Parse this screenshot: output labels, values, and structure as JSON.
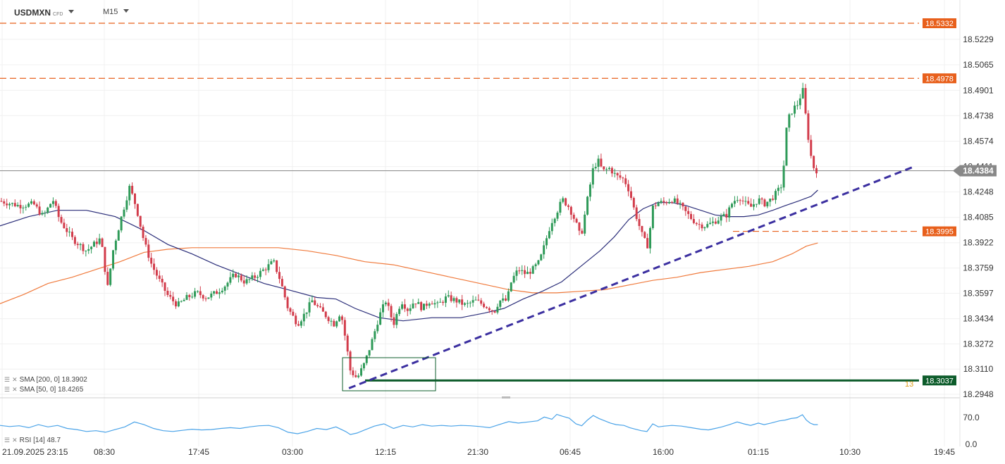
{
  "header": {
    "symbol": "USDMXN",
    "symbol_type": "CFD",
    "timeframe": "M15"
  },
  "indicators": {
    "sma200": {
      "label": "SMA [200, 0]",
      "value": "18.3902",
      "color": "#f07a3c"
    },
    "sma50": {
      "label": "SMA [50, 0]",
      "value": "18.4265",
      "color": "#2c2f7a"
    },
    "rsi": {
      "label": "RSI [14]",
      "value": "48.7",
      "color": "#4aa3e8"
    }
  },
  "chart_data": {
    "type": "candlestick",
    "price_ticks": [
      "18.5229",
      "18.5065",
      "18.4901",
      "18.4738",
      "18.4574",
      "18.4411",
      "18.4248",
      "18.4085",
      "18.3922",
      "18.3759",
      "18.3597",
      "18.3434",
      "18.3272",
      "18.3110",
      "18.2948"
    ],
    "time_ticks": [
      "21.09.2025 23:15",
      "08:30",
      "17:45",
      "03:00",
      "12:15",
      "21:30",
      "06:45",
      "16:00",
      "01:15",
      "10:30",
      "19:45"
    ],
    "y_range": [
      18.2948,
      18.5393
    ],
    "rsi_ticks": [
      "70.0",
      "0.0"
    ],
    "current_price": "18.4384",
    "levels": [
      {
        "name": "resistance-1",
        "value": "18.5332",
        "color": "#e8601c",
        "style": "dashed"
      },
      {
        "name": "resistance-2",
        "value": "18.4978",
        "color": "#e8601c",
        "style": "dashed"
      },
      {
        "name": "support-short",
        "value": "18.3995",
        "color": "#e8601c",
        "style": "dashed"
      },
      {
        "name": "low-level",
        "value": "18.3037",
        "color": "#0d5c2b",
        "style": "solid"
      }
    ],
    "low_level_marker": "13",
    "trendline": {
      "from": {
        "t": 0.3635,
        "p": 18.2987
      },
      "to": {
        "t": 0.9515,
        "p": 18.4409
      },
      "color": "#3b2fa0"
    },
    "price_path": [
      [
        0.0,
        18.419
      ],
      [
        0.02,
        18.416
      ],
      [
        0.035,
        18.417
      ],
      [
        0.045,
        18.409
      ],
      [
        0.055,
        18.42
      ],
      [
        0.062,
        18.407
      ],
      [
        0.075,
        18.395
      ],
      [
        0.09,
        18.387
      ],
      [
        0.105,
        18.395
      ],
      [
        0.112,
        18.363
      ],
      [
        0.118,
        18.388
      ],
      [
        0.127,
        18.41
      ],
      [
        0.135,
        18.428
      ],
      [
        0.142,
        18.415
      ],
      [
        0.15,
        18.393
      ],
      [
        0.158,
        18.378
      ],
      [
        0.166,
        18.368
      ],
      [
        0.175,
        18.358
      ],
      [
        0.185,
        18.352
      ],
      [
        0.195,
        18.357
      ],
      [
        0.205,
        18.36
      ],
      [
        0.215,
        18.357
      ],
      [
        0.225,
        18.36
      ],
      [
        0.235,
        18.365
      ],
      [
        0.245,
        18.372
      ],
      [
        0.255,
        18.367
      ],
      [
        0.265,
        18.37
      ],
      [
        0.275,
        18.375
      ],
      [
        0.285,
        18.38
      ],
      [
        0.292,
        18.368
      ],
      [
        0.3,
        18.35
      ],
      [
        0.31,
        18.34
      ],
      [
        0.318,
        18.347
      ],
      [
        0.325,
        18.355
      ],
      [
        0.332,
        18.35
      ],
      [
        0.34,
        18.345
      ],
      [
        0.348,
        18.34
      ],
      [
        0.355,
        18.348
      ],
      [
        0.36,
        18.33
      ],
      [
        0.365,
        18.31
      ],
      [
        0.372,
        18.305
      ],
      [
        0.38,
        18.315
      ],
      [
        0.388,
        18.33
      ],
      [
        0.395,
        18.345
      ],
      [
        0.402,
        18.355
      ],
      [
        0.41,
        18.34
      ],
      [
        0.418,
        18.355
      ],
      [
        0.425,
        18.349
      ],
      [
        0.432,
        18.355
      ],
      [
        0.44,
        18.35
      ],
      [
        0.448,
        18.355
      ],
      [
        0.456,
        18.352
      ],
      [
        0.465,
        18.357
      ],
      [
        0.475,
        18.355
      ],
      [
        0.485,
        18.352
      ],
      [
        0.495,
        18.355
      ],
      [
        0.505,
        18.352
      ],
      [
        0.515,
        18.348
      ],
      [
        0.52,
        18.355
      ],
      [
        0.528,
        18.355
      ],
      [
        0.533,
        18.368
      ],
      [
        0.54,
        18.375
      ],
      [
        0.548,
        18.372
      ],
      [
        0.555,
        18.375
      ],
      [
        0.562,
        18.38
      ],
      [
        0.567,
        18.39
      ],
      [
        0.574,
        18.405
      ],
      [
        0.58,
        18.412
      ],
      [
        0.586,
        18.42
      ],
      [
        0.593,
        18.415
      ],
      [
        0.6,
        18.405
      ],
      [
        0.605,
        18.395
      ],
      [
        0.612,
        18.42
      ],
      [
        0.618,
        18.44
      ],
      [
        0.623,
        18.445
      ],
      [
        0.628,
        18.438
      ],
      [
        0.635,
        18.44
      ],
      [
        0.642,
        18.435
      ],
      [
        0.65,
        18.433
      ],
      [
        0.656,
        18.425
      ],
      [
        0.66,
        18.415
      ],
      [
        0.665,
        18.405
      ],
      [
        0.67,
        18.395
      ],
      [
        0.675,
        18.39
      ],
      [
        0.68,
        18.415
      ],
      [
        0.686,
        18.418
      ],
      [
        0.692,
        18.418
      ],
      [
        0.7,
        18.42
      ],
      [
        0.707,
        18.417
      ],
      [
        0.714,
        18.412
      ],
      [
        0.72,
        18.408
      ],
      [
        0.727,
        18.404
      ],
      [
        0.735,
        18.403
      ],
      [
        0.742,
        18.405
      ],
      [
        0.75,
        18.408
      ],
      [
        0.757,
        18.41
      ],
      [
        0.763,
        18.418
      ],
      [
        0.77,
        18.422
      ],
      [
        0.775,
        18.418
      ],
      [
        0.782,
        18.415
      ],
      [
        0.79,
        18.42
      ],
      [
        0.796,
        18.417
      ],
      [
        0.803,
        18.42
      ],
      [
        0.81,
        18.425
      ],
      [
        0.815,
        18.43
      ],
      [
        0.82,
        18.47
      ],
      [
        0.826,
        18.478
      ],
      [
        0.832,
        18.482
      ],
      [
        0.836,
        18.492
      ],
      [
        0.84,
        18.47
      ],
      [
        0.844,
        18.45
      ],
      [
        0.848,
        18.44
      ],
      [
        0.852,
        18.438
      ]
    ],
    "sma50_path": [
      [
        0.0,
        18.403
      ],
      [
        0.03,
        18.409
      ],
      [
        0.06,
        18.413
      ],
      [
        0.09,
        18.413
      ],
      [
        0.12,
        18.409
      ],
      [
        0.15,
        18.4
      ],
      [
        0.175,
        18.391
      ],
      [
        0.2,
        18.385
      ],
      [
        0.225,
        18.378
      ],
      [
        0.25,
        18.372
      ],
      [
        0.275,
        18.366
      ],
      [
        0.3,
        18.362
      ],
      [
        0.33,
        18.357
      ],
      [
        0.35,
        18.356
      ],
      [
        0.37,
        18.35
      ],
      [
        0.395,
        18.344
      ],
      [
        0.42,
        18.342
      ],
      [
        0.45,
        18.344
      ],
      [
        0.48,
        18.344
      ],
      [
        0.505,
        18.347
      ],
      [
        0.525,
        18.35
      ],
      [
        0.545,
        18.356
      ],
      [
        0.565,
        18.361
      ],
      [
        0.585,
        18.367
      ],
      [
        0.605,
        18.377
      ],
      [
        0.625,
        18.387
      ],
      [
        0.64,
        18.396
      ],
      [
        0.655,
        18.407
      ],
      [
        0.67,
        18.414
      ],
      [
        0.685,
        18.418
      ],
      [
        0.7,
        18.418
      ],
      [
        0.715,
        18.416
      ],
      [
        0.73,
        18.413
      ],
      [
        0.745,
        18.41
      ],
      [
        0.76,
        18.409
      ],
      [
        0.775,
        18.409
      ],
      [
        0.79,
        18.41
      ],
      [
        0.805,
        18.413
      ],
      [
        0.818,
        18.416
      ],
      [
        0.832,
        18.419
      ],
      [
        0.845,
        18.422
      ],
      [
        0.852,
        18.426
      ]
    ],
    "sma200_path": [
      [
        0.0,
        18.353
      ],
      [
        0.025,
        18.359
      ],
      [
        0.05,
        18.366
      ],
      [
        0.075,
        18.37
      ],
      [
        0.1,
        18.375
      ],
      [
        0.125,
        18.38
      ],
      [
        0.15,
        18.386
      ],
      [
        0.175,
        18.388
      ],
      [
        0.2,
        18.389
      ],
      [
        0.23,
        18.389
      ],
      [
        0.26,
        18.389
      ],
      [
        0.29,
        18.389
      ],
      [
        0.32,
        18.387
      ],
      [
        0.35,
        18.384
      ],
      [
        0.38,
        18.38
      ],
      [
        0.41,
        18.378
      ],
      [
        0.44,
        18.374
      ],
      [
        0.47,
        18.37
      ],
      [
        0.5,
        18.366
      ],
      [
        0.53,
        18.362
      ],
      [
        0.555,
        18.36
      ],
      [
        0.58,
        18.36
      ],
      [
        0.605,
        18.361
      ],
      [
        0.63,
        18.362
      ],
      [
        0.655,
        18.365
      ],
      [
        0.68,
        18.368
      ],
      [
        0.705,
        18.37
      ],
      [
        0.73,
        18.373
      ],
      [
        0.755,
        18.375
      ],
      [
        0.78,
        18.377
      ],
      [
        0.805,
        18.38
      ],
      [
        0.825,
        18.385
      ],
      [
        0.84,
        18.39
      ],
      [
        0.852,
        18.392
      ]
    ],
    "rsi_path": [
      [
        0.0,
        46
      ],
      [
        0.01,
        43
      ],
      [
        0.02,
        45
      ],
      [
        0.03,
        40
      ],
      [
        0.04,
        48
      ],
      [
        0.05,
        42
      ],
      [
        0.06,
        46
      ],
      [
        0.07,
        38
      ],
      [
        0.08,
        35
      ],
      [
        0.09,
        30
      ],
      [
        0.1,
        32
      ],
      [
        0.11,
        28
      ],
      [
        0.12,
        35
      ],
      [
        0.13,
        42
      ],
      [
        0.14,
        55
      ],
      [
        0.15,
        48
      ],
      [
        0.16,
        38
      ],
      [
        0.17,
        32
      ],
      [
        0.18,
        30
      ],
      [
        0.19,
        33
      ],
      [
        0.2,
        36
      ],
      [
        0.21,
        34
      ],
      [
        0.22,
        35
      ],
      [
        0.23,
        38
      ],
      [
        0.24,
        40
      ],
      [
        0.25,
        38
      ],
      [
        0.26,
        42
      ],
      [
        0.27,
        45
      ],
      [
        0.28,
        46
      ],
      [
        0.29,
        40
      ],
      [
        0.3,
        28
      ],
      [
        0.31,
        24
      ],
      [
        0.32,
        30
      ],
      [
        0.33,
        38
      ],
      [
        0.34,
        35
      ],
      [
        0.35,
        42
      ],
      [
        0.36,
        30
      ],
      [
        0.365,
        22
      ],
      [
        0.372,
        26
      ],
      [
        0.38,
        34
      ],
      [
        0.39,
        44
      ],
      [
        0.4,
        50
      ],
      [
        0.41,
        38
      ],
      [
        0.42,
        46
      ],
      [
        0.43,
        42
      ],
      [
        0.44,
        48
      ],
      [
        0.45,
        44
      ],
      [
        0.46,
        46
      ],
      [
        0.47,
        44
      ],
      [
        0.48,
        46
      ],
      [
        0.49,
        45
      ],
      [
        0.5,
        43
      ],
      [
        0.51,
        40
      ],
      [
        0.52,
        48
      ],
      [
        0.53,
        56
      ],
      [
        0.54,
        52
      ],
      [
        0.55,
        55
      ],
      [
        0.56,
        58
      ],
      [
        0.567,
        68
      ],
      [
        0.575,
        62
      ],
      [
        0.58,
        75
      ],
      [
        0.586,
        70
      ],
      [
        0.593,
        65
      ],
      [
        0.6,
        50
      ],
      [
        0.606,
        45
      ],
      [
        0.612,
        60
      ],
      [
        0.618,
        72
      ],
      [
        0.624,
        64
      ],
      [
        0.63,
        58
      ],
      [
        0.636,
        52
      ],
      [
        0.642,
        48
      ],
      [
        0.65,
        46
      ],
      [
        0.656,
        40
      ],
      [
        0.662,
        36
      ],
      [
        0.668,
        32
      ],
      [
        0.674,
        30
      ],
      [
        0.68,
        50
      ],
      [
        0.686,
        42
      ],
      [
        0.692,
        44
      ],
      [
        0.7,
        46
      ],
      [
        0.71,
        44
      ],
      [
        0.72,
        40
      ],
      [
        0.73,
        36
      ],
      [
        0.738,
        34
      ],
      [
        0.745,
        38
      ],
      [
        0.752,
        42
      ],
      [
        0.76,
        48
      ],
      [
        0.768,
        55
      ],
      [
        0.775,
        50
      ],
      [
        0.782,
        46
      ],
      [
        0.79,
        52
      ],
      [
        0.796,
        48
      ],
      [
        0.803,
        52
      ],
      [
        0.812,
        58
      ],
      [
        0.818,
        60
      ],
      [
        0.824,
        64
      ],
      [
        0.83,
        66
      ],
      [
        0.836,
        74
      ],
      [
        0.84,
        60
      ],
      [
        0.844,
        52
      ],
      [
        0.848,
        48
      ],
      [
        0.852,
        48
      ]
    ]
  }
}
